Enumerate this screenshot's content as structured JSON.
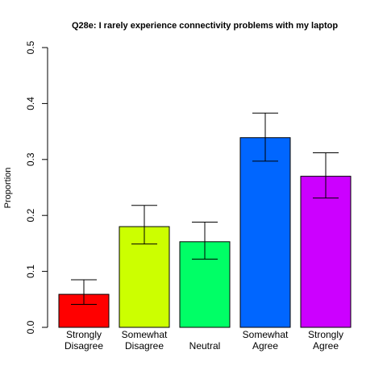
{
  "chart_data": {
    "type": "bar",
    "title": "Q28e: I rarely experience connectivity problems with my laptop",
    "xlabel": "",
    "ylabel": "Proportion",
    "ylim": [
      0,
      0.5
    ],
    "yticks": [
      "0.0",
      "0.1",
      "0.2",
      "0.3",
      "0.4",
      "0.5"
    ],
    "grid": false,
    "categories": [
      [
        "Strongly",
        "Disagree"
      ],
      [
        "Somewhat",
        "Disagree"
      ],
      [
        "Neutral"
      ],
      [
        "Somewhat",
        "Agree"
      ],
      [
        "Strongly",
        "Agree"
      ]
    ],
    "values": [
      0.059,
      0.18,
      0.153,
      0.339,
      0.27
    ],
    "error_low": [
      0.041,
      0.149,
      0.122,
      0.297,
      0.231
    ],
    "error_high": [
      0.085,
      0.218,
      0.188,
      0.383,
      0.312
    ],
    "colors": [
      "#ff0000",
      "#ccff00",
      "#00ff66",
      "#0066ff",
      "#cc00ff"
    ]
  }
}
